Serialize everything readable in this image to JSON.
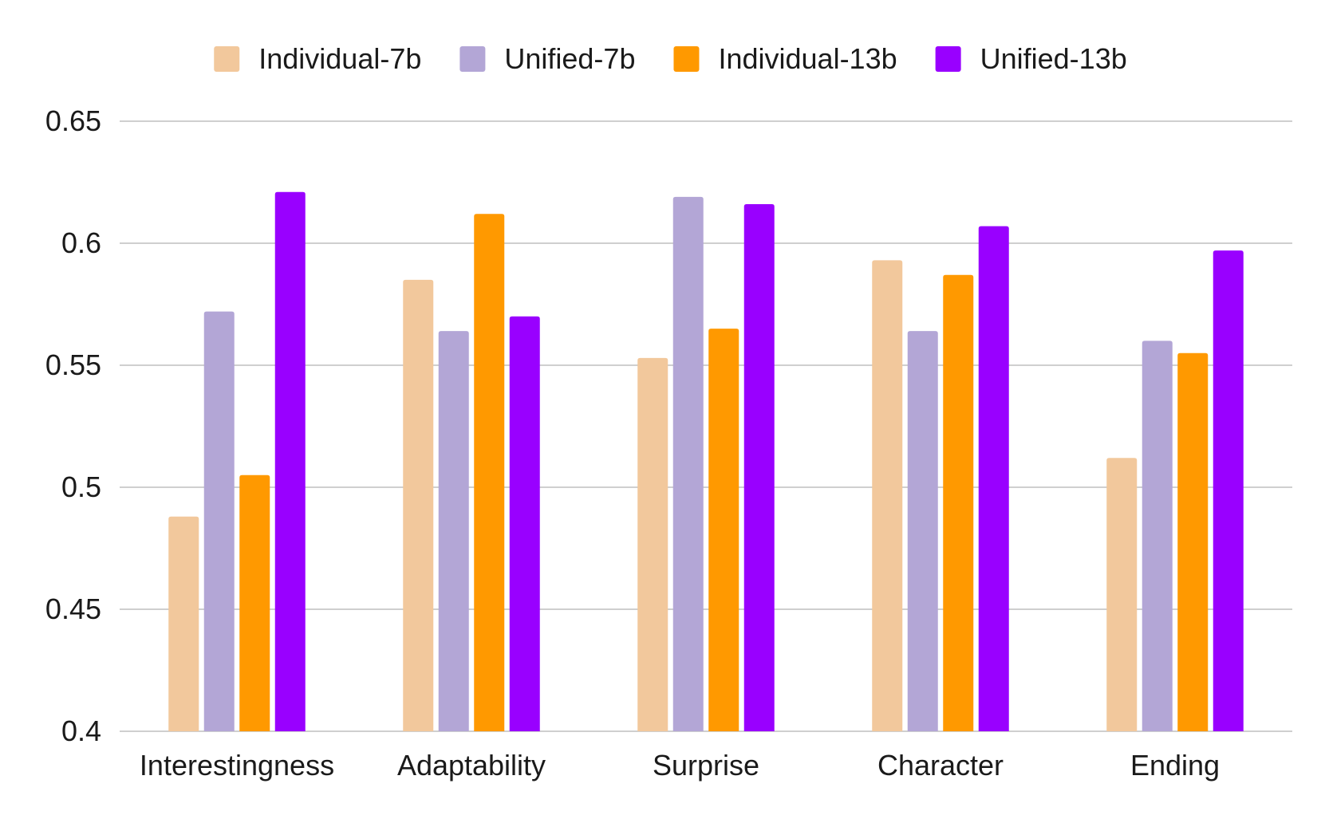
{
  "chart_data": {
    "type": "bar",
    "title": "",
    "xlabel": "",
    "ylabel": "",
    "ylim": [
      0.4,
      0.65
    ],
    "yticks": [
      0.4,
      0.45,
      0.5,
      0.55,
      0.6,
      0.65
    ],
    "ytick_labels": [
      "0.4",
      "0.45",
      "0.5",
      "0.55",
      "0.6",
      "0.65"
    ],
    "grid": true,
    "legend_position": "top",
    "categories": [
      "Interestingness",
      "Adaptability",
      "Surprise",
      "Character",
      "Ending"
    ],
    "series": [
      {
        "name": "Individual-7b",
        "color": "#f2c89c",
        "values": [
          0.488,
          0.585,
          0.553,
          0.593,
          0.512
        ]
      },
      {
        "name": "Unified-7b",
        "color": "#b3a6d6",
        "values": [
          0.572,
          0.564,
          0.619,
          0.564,
          0.56
        ]
      },
      {
        "name": "Individual-13b",
        "color": "#ff9900",
        "values": [
          0.505,
          0.612,
          0.565,
          0.587,
          0.555
        ]
      },
      {
        "name": "Unified-13b",
        "color": "#9900ff",
        "values": [
          0.621,
          0.57,
          0.616,
          0.607,
          0.597
        ]
      }
    ]
  }
}
